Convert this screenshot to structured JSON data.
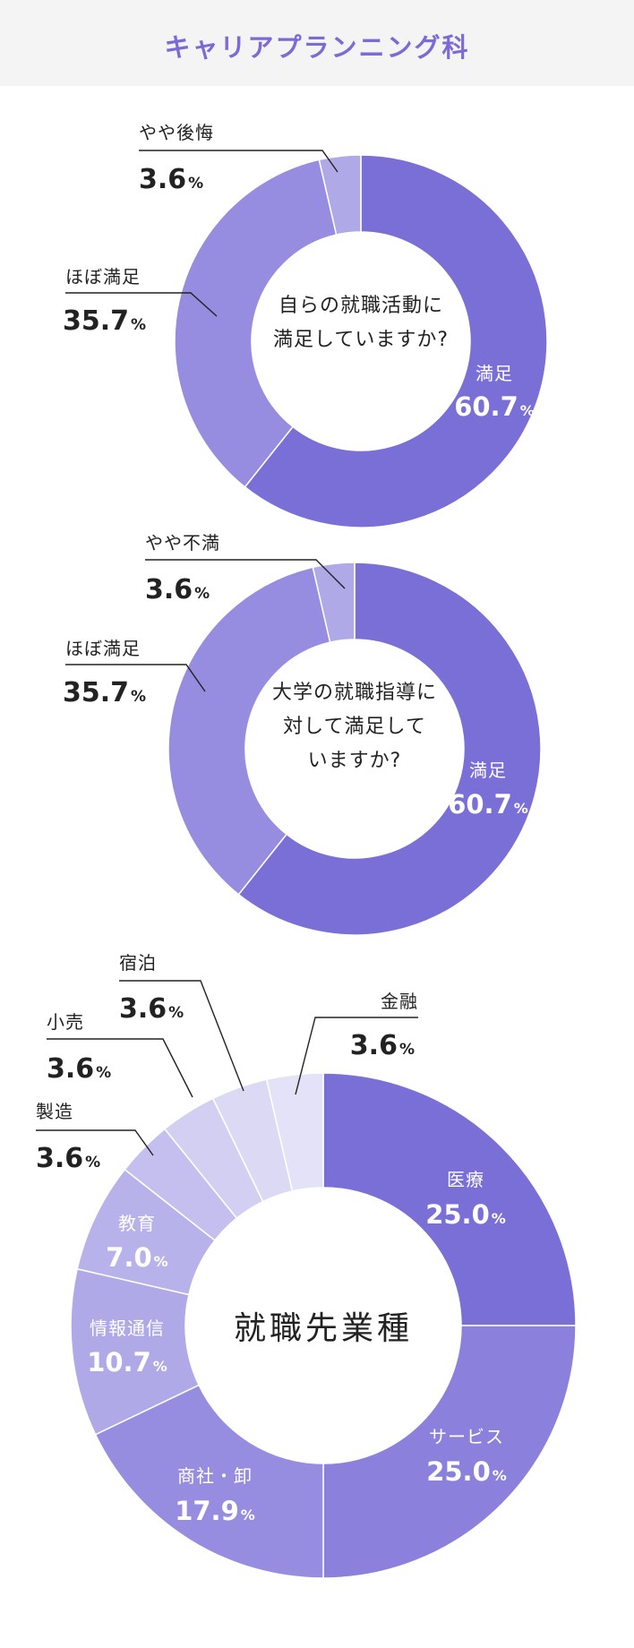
{
  "header": {
    "title": "キャリアプランニング科"
  },
  "colors": {
    "dark": "#7a6fd7",
    "mid": "#8b81dc",
    "mid2": "#968de0",
    "light1": "#b0a9e7",
    "light2": "#c4bfee",
    "light3": "#d3cff3",
    "light4": "#dcd9f5",
    "light5": "#e4e2f8",
    "light6": "#b8b2ea"
  },
  "chart_data": [
    {
      "type": "pie",
      "title": "自らの就職活動に満足していますか?",
      "title_lines": [
        "自らの就職活動に",
        "満足していますか?"
      ],
      "categories": [
        "満足",
        "ほぼ満足",
        "やや後悔"
      ],
      "values": [
        60.7,
        35.7,
        3.6
      ],
      "value_labels": [
        "60.7",
        "35.7",
        "3.6"
      ],
      "unit": "%"
    },
    {
      "type": "pie",
      "title": "大学の就職指導に対して満足していますか?",
      "title_lines": [
        "大学の就職指導に",
        "対して満足して",
        "いますか?"
      ],
      "categories": [
        "満足",
        "ほぼ満足",
        "やや不満"
      ],
      "values": [
        60.7,
        35.7,
        3.6
      ],
      "value_labels": [
        "60.7",
        "35.7",
        "3.6"
      ],
      "unit": "%"
    },
    {
      "type": "pie",
      "title": "就職先業種",
      "title_lines": [
        "就職先業種"
      ],
      "categories": [
        "医療",
        "サービス",
        "商社・卸",
        "情報通信",
        "教育",
        "製造",
        "小売",
        "宿泊",
        "金融"
      ],
      "values": [
        25.0,
        25.0,
        17.9,
        10.7,
        7.0,
        3.6,
        3.6,
        3.6,
        3.6
      ],
      "value_labels": [
        "25.0",
        "25.0",
        "17.9",
        "10.7",
        "7.0",
        "3.6",
        "3.6",
        "3.6",
        "3.6"
      ],
      "unit": "%"
    }
  ]
}
